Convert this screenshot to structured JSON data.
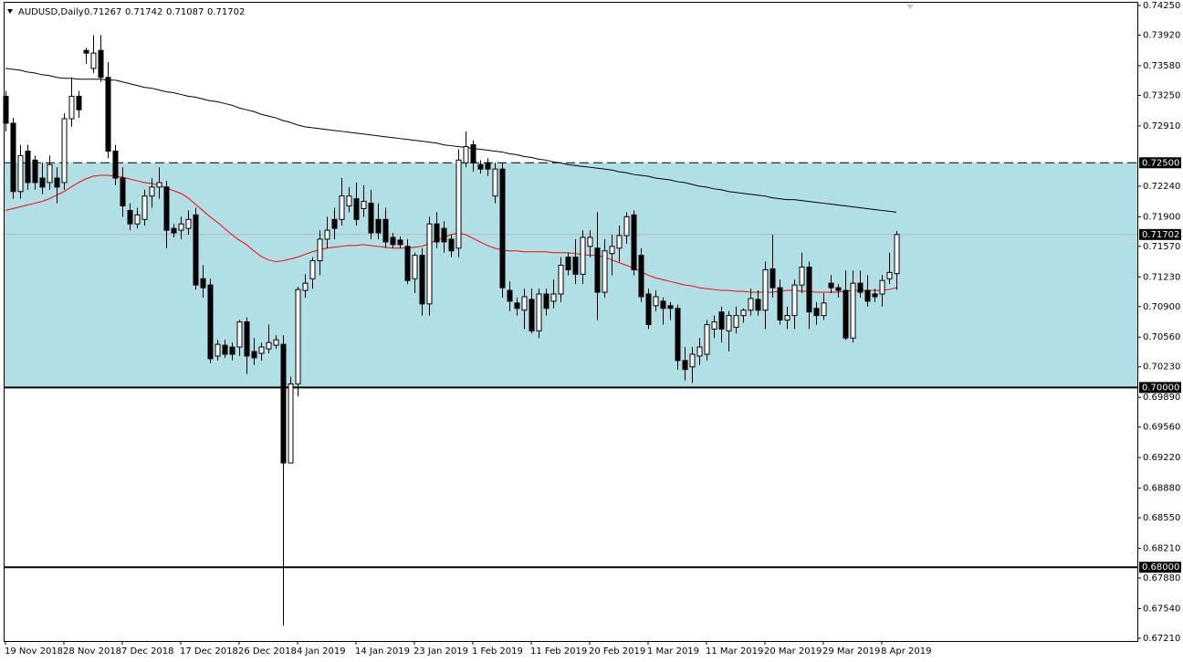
{
  "chart_data": {
    "type": "candlestick",
    "symbol": "AUDUSD,Daily",
    "categories": [
      "19 Nov 2018",
      null,
      null,
      null,
      null,
      null,
      null,
      null,
      "28 Nov 2018",
      null,
      null,
      null,
      null,
      null,
      null,
      null,
      "7 Dec 2018",
      null,
      null,
      null,
      null,
      null,
      null,
      null,
      "17 Dec 2018",
      null,
      null,
      null,
      null,
      null,
      null,
      null,
      "26 Dec 2018",
      null,
      null,
      null,
      null,
      null,
      null,
      null,
      "4 Jan 2019",
      null,
      null,
      null,
      null,
      null,
      null,
      null,
      "14 Jan 2019",
      null,
      null,
      null,
      null,
      null,
      null,
      null,
      "23 Jan 2019",
      null,
      null,
      null,
      null,
      null,
      null,
      null,
      "1 Feb 2019",
      null,
      null,
      null,
      null,
      null,
      null,
      null,
      "11 Feb 2019",
      null,
      null,
      null,
      null,
      null,
      null,
      null,
      "20 Feb 2019",
      null,
      null,
      null,
      null,
      null,
      null,
      null,
      "1 Mar 2019",
      null,
      null,
      null,
      null,
      null,
      null,
      null,
      "11 Mar 2019",
      null,
      null,
      null,
      null,
      null,
      null,
      null,
      "20 Mar 2019",
      null,
      null,
      null,
      null,
      null,
      null,
      null,
      "29 Mar 2019",
      null,
      null,
      null,
      null,
      null,
      null,
      null,
      "8 Apr 2019",
      null,
      null
    ],
    "open": [
      0.7324,
      0.7294,
      0.7218,
      0.7263,
      0.7253,
      0.7233,
      0.7228,
      0.7233,
      0.7228,
      0.7299,
      0.7324,
      0.7375,
      0.7355,
      0.7375,
      0.7345,
      0.7263,
      0.7233,
      0.7197,
      0.7182,
      0.7187,
      0.7213,
      0.7223,
      0.7223,
      0.7177,
      0.7175,
      0.7177,
      0.7192,
      0.7121,
      0.7114,
      0.7035,
      0.7047,
      0.7045,
      0.7045,
      0.7073,
      0.704,
      0.7038,
      0.7043,
      0.7047,
      0.7048,
      0.6916,
      0.7004,
      0.7108,
      0.7121,
      0.7141,
      0.7165,
      0.7187,
      0.7187,
      0.7202,
      0.721,
      0.7199,
      0.7205,
      0.7187,
      0.7187,
      0.7167,
      0.7164,
      0.7157,
      0.7121,
      0.7147,
      0.7093,
      0.7182,
      0.7177,
      0.7165,
      0.7155,
      0.725,
      0.727,
      0.7248,
      0.725,
      0.7213,
      0.7243,
      0.7108,
      0.7094,
      0.7086,
      0.7098,
      0.7063,
      0.7104,
      0.7096,
      0.7104,
      0.7145,
      0.7145,
      0.7126,
      0.7157,
      0.7155,
      0.7106,
      0.7149,
      0.7155,
      0.7169,
      0.7192,
      0.7147,
      0.7104,
      0.7091,
      0.7096,
      0.7091,
      0.7088,
      0.703,
      0.7023,
      0.7035,
      0.7037,
      0.7065,
      0.7084,
      0.7063,
      0.7067,
      0.708,
      0.7086,
      0.7098,
      0.7086,
      0.7132,
      0.7111,
      0.7075,
      0.708,
      0.7114,
      0.7134,
      0.7088,
      0.708,
      0.7116,
      0.7111,
      0.7108,
      0.7055,
      0.7116,
      0.7108,
      0.7104,
      0.7104,
      0.7121,
      0.71267
    ],
    "high": [
      0.733,
      0.73,
      0.727,
      0.727,
      0.7258,
      0.725,
      0.7258,
      0.7245,
      0.7305,
      0.7345,
      0.733,
      0.7378,
      0.7392,
      0.7392,
      0.7362,
      0.727,
      0.7245,
      0.7205,
      0.72,
      0.722,
      0.7233,
      0.7245,
      0.723,
      0.7182,
      0.719,
      0.7197,
      0.72,
      0.7136,
      0.7121,
      0.7053,
      0.7053,
      0.705,
      0.7075,
      0.7078,
      0.7055,
      0.705,
      0.707,
      0.7058,
      0.7058,
      0.7012,
      0.7112,
      0.7126,
      0.7145,
      0.7175,
      0.719,
      0.72,
      0.7233,
      0.7223,
      0.7228,
      0.7225,
      0.722,
      0.7205,
      0.72,
      0.7172,
      0.7168,
      0.7165,
      0.715,
      0.7155,
      0.719,
      0.7195,
      0.7185,
      0.717,
      0.7265,
      0.7285,
      0.7275,
      0.7253,
      0.7255,
      0.725,
      0.725,
      0.7118,
      0.71,
      0.711,
      0.711,
      0.711,
      0.711,
      0.712,
      0.7145,
      0.715,
      0.7165,
      0.7175,
      0.7175,
      0.7195,
      0.7165,
      0.717,
      0.718,
      0.7195,
      0.7197,
      0.7155,
      0.711,
      0.7108,
      0.71,
      0.7095,
      0.7092,
      0.7045,
      0.7045,
      0.7055,
      0.7075,
      0.708,
      0.709,
      0.7085,
      0.709,
      0.7088,
      0.711,
      0.7108,
      0.714,
      0.717,
      0.712,
      0.709,
      0.712,
      0.715,
      0.714,
      0.7095,
      0.7105,
      0.7125,
      0.7115,
      0.713,
      0.713,
      0.713,
      0.7125,
      0.711,
      0.7125,
      0.715,
      0.71742
    ],
    "low": [
      0.7285,
      0.721,
      0.721,
      0.722,
      0.722,
      0.7215,
      0.722,
      0.7205,
      0.722,
      0.729,
      0.73,
      0.736,
      0.735,
      0.734,
      0.7255,
      0.7225,
      0.719,
      0.7175,
      0.7177,
      0.718,
      0.72,
      0.721,
      0.7155,
      0.7167,
      0.7165,
      0.717,
      0.7109,
      0.71,
      0.7027,
      0.703,
      0.7033,
      0.703,
      0.7035,
      0.7015,
      0.7025,
      0.703,
      0.7038,
      0.7043,
      0.6735,
      0.6916,
      0.699,
      0.71,
      0.711,
      0.7125,
      0.7155,
      0.7165,
      0.718,
      0.7195,
      0.718,
      0.719,
      0.7165,
      0.7165,
      0.7155,
      0.7155,
      0.7155,
      0.7115,
      0.7105,
      0.708,
      0.708,
      0.7155,
      0.715,
      0.7145,
      0.7145,
      0.7245,
      0.724,
      0.7238,
      0.7235,
      0.7205,
      0.71,
      0.7085,
      0.708,
      0.7065,
      0.706,
      0.7055,
      0.708,
      0.7088,
      0.7095,
      0.7125,
      0.7115,
      0.7115,
      0.7145,
      0.7075,
      0.71,
      0.7125,
      0.714,
      0.716,
      0.7125,
      0.7095,
      0.7065,
      0.7085,
      0.707,
      0.7075,
      0.702,
      0.7008,
      0.7005,
      0.7025,
      0.703,
      0.7055,
      0.705,
      0.704,
      0.706,
      0.7072,
      0.708,
      0.708,
      0.7065,
      0.71,
      0.707,
      0.7065,
      0.7065,
      0.7105,
      0.7065,
      0.707,
      0.7075,
      0.7105,
      0.71,
      0.7053,
      0.705,
      0.71,
      0.709,
      0.7095,
      0.709,
      0.7115,
      0.71087
    ],
    "close": [
      0.7294,
      0.7218,
      0.7258,
      0.7228,
      0.7228,
      0.7223,
      0.7248,
      0.7223,
      0.7299,
      0.7324,
      0.7309,
      0.7372,
      0.7372,
      0.7345,
      0.7263,
      0.7233,
      0.7202,
      0.7182,
      0.7192,
      0.7213,
      0.7223,
      0.7228,
      0.7175,
      0.7172,
      0.7182,
      0.7187,
      0.7114,
      0.7111,
      0.7032,
      0.7048,
      0.7037,
      0.7037,
      0.7073,
      0.7035,
      0.7033,
      0.7045,
      0.705,
      0.7053,
      0.6916,
      0.7004,
      0.7109,
      0.7116,
      0.7141,
      0.7165,
      0.7175,
      0.7177,
      0.7213,
      0.7213,
      0.7187,
      0.7207,
      0.7172,
      0.7172,
      0.7162,
      0.7159,
      0.7159,
      0.7119,
      0.7147,
      0.7093,
      0.7182,
      0.7162,
      0.7162,
      0.7152,
      0.7253,
      0.7268,
      0.725,
      0.7243,
      0.7243,
      0.7243,
      0.7111,
      0.7096,
      0.7088,
      0.7101,
      0.7063,
      0.7104,
      0.7088,
      0.7104,
      0.7136,
      0.7131,
      0.7126,
      0.7167,
      0.7167,
      0.7106,
      0.7152,
      0.7157,
      0.7169,
      0.719,
      0.7131,
      0.7101,
      0.707,
      0.7101,
      0.7088,
      0.7088,
      0.703,
      0.702,
      0.7037,
      0.7045,
      0.707,
      0.7073,
      0.7065,
      0.708,
      0.708,
      0.7086,
      0.7099,
      0.7086,
      0.7131,
      0.7111,
      0.7075,
      0.708,
      0.7114,
      0.7134,
      0.7084,
      0.708,
      0.7094,
      0.7111,
      0.7108,
      0.7055,
      0.7116,
      0.7106,
      0.7096,
      0.7101,
      0.7119,
      0.7128,
      0.71702
    ],
    "up_color": "#ffffff",
    "down_color": "#000000",
    "lines": [
      {
        "color": "#000000",
        "values": [
          0.7355,
          0.7354,
          0.7353,
          0.7351,
          0.735,
          0.7348,
          0.7347,
          0.7345,
          0.7344,
          0.7344,
          0.7343,
          0.7343,
          0.7343,
          0.7343,
          0.7342,
          0.7342,
          0.734,
          0.7338,
          0.7336,
          0.7334,
          0.7333,
          0.7331,
          0.7329,
          0.7328,
          0.7326,
          0.7324,
          0.7323,
          0.7321,
          0.7319,
          0.7318,
          0.7316,
          0.7314,
          0.7311,
          0.7309,
          0.7307,
          0.7304,
          0.7302,
          0.73,
          0.7297,
          0.7295,
          0.7292,
          0.729,
          0.7289,
          0.7288,
          0.7287,
          0.7286,
          0.7285,
          0.7284,
          0.7283,
          0.7282,
          0.7281,
          0.728,
          0.7279,
          0.7278,
          0.7277,
          0.7276,
          0.7275,
          0.7274,
          0.7273,
          0.7272,
          0.727,
          0.7269,
          0.7268,
          0.7267,
          0.7266,
          0.7265,
          0.7264,
          0.7263,
          0.7262,
          0.726,
          0.7259,
          0.7257,
          0.7256,
          0.7254,
          0.7253,
          0.7251,
          0.725,
          0.7248,
          0.7247,
          0.7246,
          0.7245,
          0.7244,
          0.7243,
          0.7242,
          0.724,
          0.7239,
          0.7237,
          0.7236,
          0.7235,
          0.7233,
          0.7232,
          0.7231,
          0.7229,
          0.7228,
          0.7226,
          0.7224,
          0.7223,
          0.7221,
          0.722,
          0.7218,
          0.7217,
          0.7216,
          0.7215,
          0.7214,
          0.7213,
          0.7211,
          0.721,
          0.7209,
          0.7209,
          0.7208,
          0.7207,
          0.7206,
          0.7205,
          0.7204,
          0.7203,
          0.7202,
          0.7201,
          0.72,
          0.7199,
          0.7198,
          0.7197,
          0.7196,
          0.7195
        ]
      },
      {
        "color": "#ff0000",
        "values": [
          0.7197,
          0.7199,
          0.7201,
          0.7203,
          0.7205,
          0.7207,
          0.721,
          0.7214,
          0.7218,
          0.7223,
          0.7228,
          0.7232,
          0.7235,
          0.7236,
          0.7236,
          0.7235,
          0.7234,
          0.7232,
          0.723,
          0.7228,
          0.7227,
          0.7225,
          0.7222,
          0.7219,
          0.7216,
          0.7211,
          0.7204,
          0.7197,
          0.719,
          0.7184,
          0.7177,
          0.717,
          0.7164,
          0.7159,
          0.7152,
          0.7146,
          0.7142,
          0.714,
          0.7141,
          0.7143,
          0.7145,
          0.7148,
          0.7151,
          0.7153,
          0.7155,
          0.7156,
          0.7157,
          0.7158,
          0.7158,
          0.7159,
          0.7158,
          0.7157,
          0.7156,
          0.7155,
          0.7155,
          0.7155,
          0.7156,
          0.7157,
          0.716,
          0.7164,
          0.7167,
          0.717,
          0.7172,
          0.717,
          0.7166,
          0.7162,
          0.7158,
          0.7155,
          0.7153,
          0.7152,
          0.7152,
          0.7151,
          0.7151,
          0.7151,
          0.7151,
          0.715,
          0.715,
          0.715,
          0.7149,
          0.7148,
          0.7147,
          0.7147,
          0.7145,
          0.7142,
          0.7139,
          0.7136,
          0.7133,
          0.7129,
          0.7125,
          0.7122,
          0.712,
          0.7118,
          0.7116,
          0.7114,
          0.7113,
          0.7111,
          0.711,
          0.7109,
          0.7108,
          0.7108,
          0.7107,
          0.7107,
          0.7106,
          0.7106,
          0.7106,
          0.7106,
          0.7107,
          0.7108,
          0.7108,
          0.7107,
          0.7107,
          0.7106,
          0.7106,
          0.7106,
          0.7106,
          0.7107,
          0.7108,
          0.7108,
          0.7108,
          0.7108,
          0.7108,
          0.7109,
          0.7111
        ]
      }
    ],
    "zone": {
      "range": [
        0.7,
        0.725
      ],
      "color": "#b0e0e6"
    },
    "levels": [
      {
        "value": 0.725,
        "label": "0.72500",
        "style": "dashed"
      },
      {
        "value": 0.7,
        "label": "0.70000",
        "style": "solid"
      },
      {
        "value": 0.68,
        "label": "0.68000",
        "style": "solid"
      }
    ],
    "ylim": [
      0.6721,
      0.7425
    ],
    "yticks": [
      {
        "value": 0.7425,
        "label": "0.74250"
      },
      {
        "value": 0.7392,
        "label": "0.73920"
      },
      {
        "value": 0.7358,
        "label": "0.73580"
      },
      {
        "value": 0.7325,
        "label": "0.73250"
      },
      {
        "value": 0.7291,
        "label": "0.72910"
      },
      {
        "value": 0.7224,
        "label": "0.72240"
      },
      {
        "value": 0.719,
        "label": "0.71900"
      },
      {
        "value": 0.7157,
        "label": "0.71570"
      },
      {
        "value": 0.7123,
        "label": "0.71230"
      },
      {
        "value": 0.709,
        "label": "0.70900"
      },
      {
        "value": 0.7056,
        "label": "0.70560"
      },
      {
        "value": 0.7023,
        "label": "0.70230"
      },
      {
        "value": 0.6989,
        "label": "0.69890"
      },
      {
        "value": 0.6956,
        "label": "0.69560"
      },
      {
        "value": 0.6922,
        "label": "0.69220"
      },
      {
        "value": 0.6888,
        "label": "0.68880"
      },
      {
        "value": 0.6855,
        "label": "0.68550"
      },
      {
        "value": 0.6821,
        "label": "0.68210"
      },
      {
        "value": 0.6788,
        "label": "0.67880"
      },
      {
        "value": 0.6754,
        "label": "0.67540"
      },
      {
        "value": 0.6721,
        "label": "0.67210"
      }
    ],
    "grid": false
  }
}
